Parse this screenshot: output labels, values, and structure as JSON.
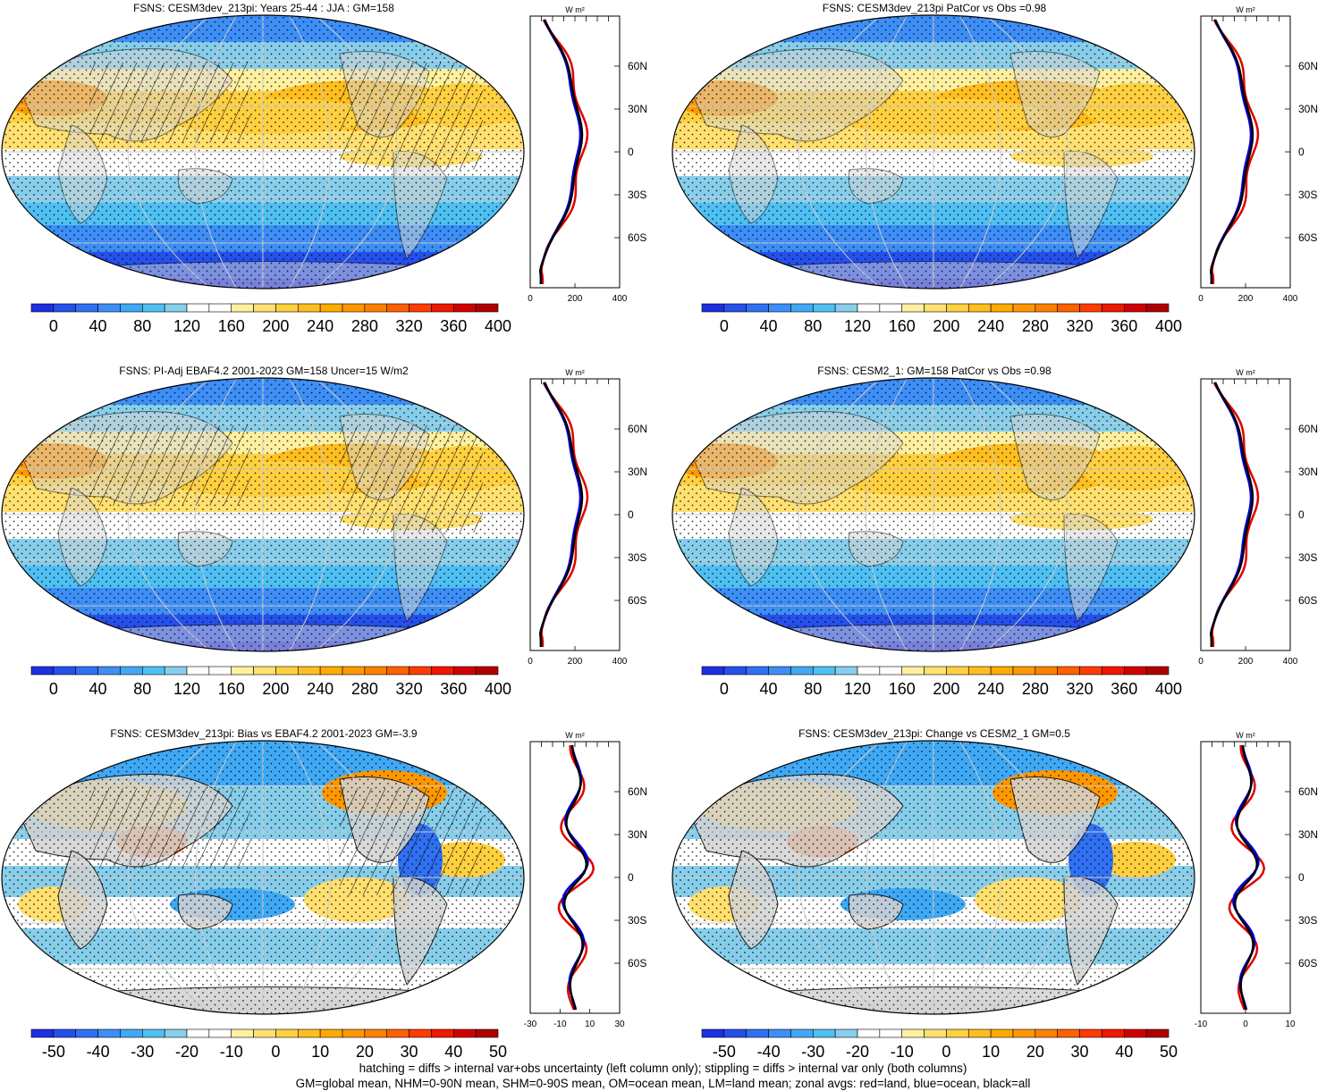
{
  "panels": [
    {
      "title": "FSNS: CESM3dev_213pi: Years 25-44 : JJA : GM=158",
      "kind": "mean",
      "colorbar": {
        "ticks": [
          "0",
          "40",
          "80",
          "120",
          "160",
          "200",
          "240",
          "280",
          "320",
          "360",
          "400"
        ],
        "colors": [
          "#1d2fe0",
          "#2550ec",
          "#3070f2",
          "#3d8ef6",
          "#3fa9f5",
          "#4fc0f3",
          "#87ceeb",
          "#ffffff",
          "#ffffff",
          "#fff0a0",
          "#ffe070",
          "#ffd040",
          "#ffbe20",
          "#ffab00",
          "#ff9800",
          "#ff8000",
          "#ff6000",
          "#ff3c00",
          "#f01800",
          "#d00000",
          "#b00000"
        ]
      },
      "zonal": {
        "lat_ticks": [
          "60N",
          "30N",
          "0",
          "30S",
          "60S"
        ],
        "x_ticks": [
          "0",
          "200",
          "400"
        ],
        "units": "W m-2"
      }
    },
    {
      "title": "FSNS: CESM3dev_213pi PatCor vs Obs =0.98",
      "kind": "mean",
      "colorbar": {
        "ticks": [
          "0",
          "40",
          "80",
          "120",
          "160",
          "200",
          "240",
          "280",
          "320",
          "360",
          "400"
        ],
        "colors": [
          "#1d2fe0",
          "#2550ec",
          "#3070f2",
          "#3d8ef6",
          "#3fa9f5",
          "#4fc0f3",
          "#87ceeb",
          "#ffffff",
          "#ffffff",
          "#fff0a0",
          "#ffe070",
          "#ffd040",
          "#ffbe20",
          "#ffab00",
          "#ff9800",
          "#ff8000",
          "#ff6000",
          "#ff3c00",
          "#f01800",
          "#d00000",
          "#b00000"
        ]
      },
      "zonal": {
        "lat_ticks": [
          "60N",
          "30N",
          "0",
          "30S",
          "60S"
        ],
        "x_ticks": [
          "0",
          "200",
          "400"
        ],
        "units": "W m-2"
      }
    },
    {
      "title": "FSNS: PI-Adj EBAF4.2 2001-2023 GM=158 Uncer=15 W/m2",
      "kind": "mean",
      "colorbar": {
        "ticks": [
          "0",
          "40",
          "80",
          "120",
          "160",
          "200",
          "240",
          "280",
          "320",
          "360",
          "400"
        ],
        "colors": [
          "#1d2fe0",
          "#2550ec",
          "#3070f2",
          "#3d8ef6",
          "#3fa9f5",
          "#4fc0f3",
          "#87ceeb",
          "#ffffff",
          "#ffffff",
          "#fff0a0",
          "#ffe070",
          "#ffd040",
          "#ffbe20",
          "#ffab00",
          "#ff9800",
          "#ff8000",
          "#ff6000",
          "#ff3c00",
          "#f01800",
          "#d00000",
          "#b00000"
        ]
      },
      "zonal": {
        "lat_ticks": [
          "60N",
          "30N",
          "0",
          "30S",
          "60S"
        ],
        "x_ticks": [
          "0",
          "200",
          "400"
        ],
        "units": "W m-2"
      }
    },
    {
      "title": "FSNS: CESM2_1: GM=158 PatCor vs Obs =0.98",
      "kind": "mean",
      "colorbar": {
        "ticks": [
          "0",
          "40",
          "80",
          "120",
          "160",
          "200",
          "240",
          "280",
          "320",
          "360",
          "400"
        ],
        "colors": [
          "#1d2fe0",
          "#2550ec",
          "#3070f2",
          "#3d8ef6",
          "#3fa9f5",
          "#4fc0f3",
          "#87ceeb",
          "#ffffff",
          "#ffffff",
          "#fff0a0",
          "#ffe070",
          "#ffd040",
          "#ffbe20",
          "#ffab00",
          "#ff9800",
          "#ff8000",
          "#ff6000",
          "#ff3c00",
          "#f01800",
          "#d00000",
          "#b00000"
        ]
      },
      "zonal": {
        "lat_ticks": [
          "60N",
          "30N",
          "0",
          "30S",
          "60S"
        ],
        "x_ticks": [
          "0",
          "200",
          "400"
        ],
        "units": "W m-2"
      }
    },
    {
      "title": "FSNS: CESM3dev_213pi: Bias vs EBAF4.2 2001-2023 GM=-3.9",
      "kind": "diff",
      "colorbar": {
        "ticks": [
          "-50",
          "-40",
          "-30",
          "-20",
          "-10",
          "0",
          "10",
          "20",
          "30",
          "40",
          "50"
        ],
        "colors": [
          "#1d2fe0",
          "#2550ec",
          "#3070f2",
          "#3d8ef6",
          "#3fa9f5",
          "#4fc0f3",
          "#87ceeb",
          "#ffffff",
          "#ffffff",
          "#fff0a0",
          "#ffe070",
          "#ffd040",
          "#ffbe20",
          "#ffab00",
          "#ff9800",
          "#ff8000",
          "#ff6000",
          "#ff3c00",
          "#f01800",
          "#d00000",
          "#b00000"
        ]
      },
      "zonal": {
        "lat_ticks": [
          "60N",
          "30N",
          "0",
          "30S",
          "60S"
        ],
        "x_ticks": [
          "-30",
          "-10",
          "10",
          "30"
        ],
        "units": "W m-2"
      }
    },
    {
      "title": "FSNS: CESM3dev_213pi: Change vs CESM2_1 GM=0.5",
      "kind": "diff",
      "colorbar": {
        "ticks": [
          "-50",
          "-40",
          "-30",
          "-20",
          "-10",
          "0",
          "10",
          "20",
          "30",
          "40",
          "50"
        ],
        "colors": [
          "#1d2fe0",
          "#2550ec",
          "#3070f2",
          "#3d8ef6",
          "#3fa9f5",
          "#4fc0f3",
          "#87ceeb",
          "#ffffff",
          "#ffffff",
          "#fff0a0",
          "#ffe070",
          "#ffd040",
          "#ffbe20",
          "#ffab00",
          "#ff9800",
          "#ff8000",
          "#ff6000",
          "#ff3c00",
          "#f01800",
          "#d00000",
          "#b00000"
        ]
      },
      "zonal": {
        "lat_ticks": [
          "60N",
          "30N",
          "0",
          "30S",
          "60S"
        ],
        "x_ticks": [
          "-10",
          "0",
          "10"
        ],
        "units": "W m-2"
      }
    }
  ],
  "footer": {
    "line1": "hatching = diffs > internal var+obs uncertainty (left column only); stippling = diffs > internal var only (both columns)",
    "line2": "GM=global mean, NHM=0-90N mean, SHM=0-90S mean, OM=ocean mean, LM=land mean; zonal avgs: red=land, blue=ocean, black=all"
  },
  "line_colors": {
    "land": "#e00000",
    "ocean": "#0000e0",
    "all": "#000000"
  }
}
